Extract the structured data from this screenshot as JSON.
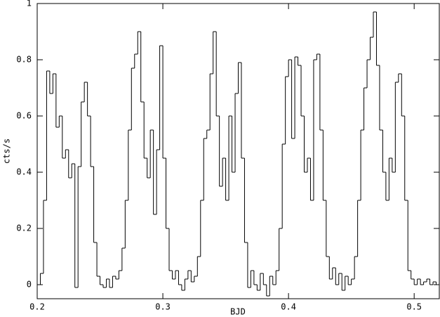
{
  "chart_data": {
    "type": "step",
    "xlabel": "BJD",
    "ylabel": "cts/s",
    "xlim": [
      0.2,
      0.52
    ],
    "ylim": [
      -0.05,
      1
    ],
    "xticks": [
      0.2,
      0.3,
      0.4,
      0.5
    ],
    "yticks": [
      0,
      0.2,
      0.4,
      0.6,
      0.8,
      1
    ],
    "color": "#000000",
    "x": [
      0.2,
      0.2025,
      0.205,
      0.2075,
      0.21,
      0.2125,
      0.215,
      0.2175,
      0.22,
      0.2225,
      0.225,
      0.2275,
      0.23,
      0.2325,
      0.235,
      0.2375,
      0.24,
      0.2425,
      0.245,
      0.2475,
      0.25,
      0.2525,
      0.255,
      0.2575,
      0.26,
      0.2625,
      0.265,
      0.2675,
      0.27,
      0.2725,
      0.275,
      0.2775,
      0.28,
      0.2825,
      0.285,
      0.2875,
      0.29,
      0.2925,
      0.295,
      0.2975,
      0.3,
      0.3025,
      0.305,
      0.3075,
      0.31,
      0.3125,
      0.315,
      0.3175,
      0.32,
      0.3225,
      0.325,
      0.3275,
      0.33,
      0.3325,
      0.335,
      0.3375,
      0.34,
      0.3425,
      0.345,
      0.3475,
      0.35,
      0.3525,
      0.355,
      0.3575,
      0.36,
      0.3625,
      0.365,
      0.3675,
      0.37,
      0.3725,
      0.375,
      0.3775,
      0.38,
      0.3825,
      0.385,
      0.3875,
      0.39,
      0.3925,
      0.395,
      0.3975,
      0.4,
      0.4025,
      0.405,
      0.4075,
      0.41,
      0.4125,
      0.415,
      0.4175,
      0.42,
      0.4225,
      0.425,
      0.4275,
      0.43,
      0.4325,
      0.435,
      0.4375,
      0.44,
      0.4425,
      0.445,
      0.4475,
      0.45,
      0.4525,
      0.455,
      0.4575,
      0.46,
      0.4625,
      0.465,
      0.4675,
      0.47,
      0.4725,
      0.475,
      0.4775,
      0.48,
      0.4825,
      0.485,
      0.4875,
      0.49,
      0.4925,
      0.495,
      0.4975,
      0.5,
      0.5025,
      0.505,
      0.5075,
      0.51,
      0.5125,
      0.515,
      0.5175
    ],
    "values": [
      0,
      0.04,
      0.3,
      0.76,
      0.68,
      0.75,
      0.56,
      0.6,
      0.45,
      0.48,
      0.38,
      0.43,
      -0.01,
      0.42,
      0.65,
      0.72,
      0.6,
      0.42,
      0.15,
      0.03,
      0,
      -0.01,
      0.02,
      -0.01,
      0.03,
      0.02,
      0.05,
      0.13,
      0.3,
      0.55,
      0.77,
      0.82,
      0.9,
      0.65,
      0.45,
      0.38,
      0.55,
      0.25,
      0.48,
      0.85,
      0.45,
      0.2,
      0.05,
      0.02,
      0.05,
      0,
      -0.02,
      0.02,
      0.05,
      0.01,
      0.03,
      0.1,
      0.3,
      0.52,
      0.55,
      0.75,
      0.9,
      0.6,
      0.35,
      0.45,
      0.3,
      0.6,
      0.4,
      0.68,
      0.79,
      0.45,
      0.15,
      -0.01,
      0.05,
      0,
      -0.02,
      0.04,
      0,
      -0.04,
      0.03,
      0,
      0.05,
      0.2,
      0.5,
      0.74,
      0.8,
      0.52,
      0.81,
      0.78,
      0.6,
      0.4,
      0.45,
      0.3,
      0.8,
      0.82,
      0.55,
      0.3,
      0.1,
      0.02,
      0.06,
      0,
      0.04,
      -0.02,
      0.03,
      0,
      0.02,
      0.1,
      0.3,
      0.55,
      0.7,
      0.8,
      0.88,
      0.97,
      0.78,
      0.55,
      0.4,
      0.3,
      0.45,
      0.4,
      0.72,
      0.75,
      0.6,
      0.3,
      0.05,
      0.02,
      0,
      0.02,
      0,
      0.01,
      0.02,
      0,
      0.01,
      0
    ]
  }
}
